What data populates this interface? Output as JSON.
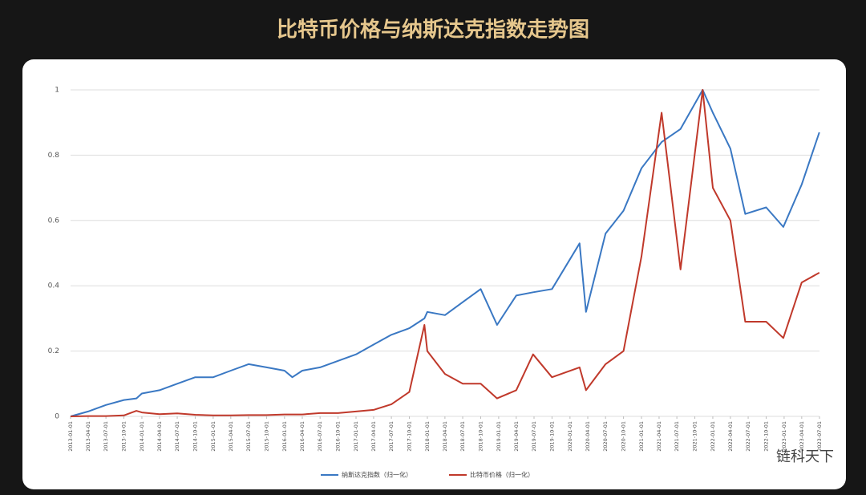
{
  "chart_data": {
    "type": "line",
    "title": "比特币价格与纳斯达克指数走势图",
    "watermark": "链科天下",
    "x": [
      "2013-01-01",
      "2013-04-01",
      "2013-07-01",
      "2013-10-01",
      "2013-12-04",
      "2014-01-01",
      "2014-04-01",
      "2014-07-01",
      "2014-10-01",
      "2015-01-01",
      "2015-04-01",
      "2015-07-01",
      "2015-10-01",
      "2016-01-01",
      "2016-02-10",
      "2016-04-01",
      "2016-07-01",
      "2016-10-01",
      "2017-01-01",
      "2017-04-01",
      "2017-07-01",
      "2017-10-01",
      "2017-12-17",
      "2018-01-01",
      "2018-04-01",
      "2018-07-01",
      "2018-10-01",
      "2018-12-24",
      "2019-04-01",
      "2019-06-26",
      "2019-10-01",
      "2020-02-19",
      "2020-03-23",
      "2020-07-01",
      "2020-10-01",
      "2021-01-01",
      "2021-04-14",
      "2021-07-20",
      "2021-11-10",
      "2022-01-01",
      "2022-04-01",
      "2022-06-16",
      "2022-10-01",
      "2022-12-28",
      "2023-04-01",
      "2023-06-30"
    ],
    "series": [
      {
        "name": "纳斯达克指数（归一化）",
        "color": "#3a78c3",
        "values": [
          0,
          0.015,
          0.035,
          0.05,
          0.055,
          0.07,
          0.08,
          0.1,
          0.12,
          0.12,
          0.14,
          0.16,
          0.15,
          0.14,
          0.12,
          0.14,
          0.15,
          0.17,
          0.19,
          0.22,
          0.25,
          0.27,
          0.3,
          0.32,
          0.31,
          0.35,
          0.39,
          0.28,
          0.37,
          0.38,
          0.39,
          0.53,
          0.32,
          0.56,
          0.63,
          0.76,
          0.84,
          0.88,
          1,
          0.93,
          0.82,
          0.62,
          0.64,
          0.58,
          0.71,
          0.87
        ]
      },
      {
        "name": "比特币价格（归一化）",
        "color": "#c0392b",
        "values": [
          0,
          0.001,
          0.001,
          0.003,
          0.017,
          0.012,
          0.007,
          0.009,
          0.005,
          0.003,
          0.003,
          0.004,
          0.004,
          0.006,
          0.006,
          0.006,
          0.01,
          0.01,
          0.015,
          0.02,
          0.037,
          0.075,
          0.28,
          0.2,
          0.13,
          0.1,
          0.1,
          0.055,
          0.08,
          0.19,
          0.12,
          0.15,
          0.08,
          0.16,
          0.2,
          0.49,
          0.93,
          0.45,
          1,
          0.7,
          0.6,
          0.29,
          0.29,
          0.24,
          0.41,
          0.44
        ]
      }
    ],
    "xlim": [
      "2013-01-01",
      "2023-07-01"
    ],
    "xticks": [
      "2013-01-01",
      "2013-04-01",
      "2013-07-01",
      "2013-10-01",
      "2014-01-01",
      "2014-04-01",
      "2014-07-01",
      "2014-10-01",
      "2015-01-01",
      "2015-04-01",
      "2015-07-01",
      "2015-10-01",
      "2016-01-01",
      "2016-04-01",
      "2016-07-01",
      "2016-10-01",
      "2017-01-01",
      "2017-04-01",
      "2017-07-01",
      "2017-10-01",
      "2018-01-01",
      "2018-04-01",
      "2018-07-01",
      "2018-10-01",
      "2019-01-01",
      "2019-04-01",
      "2019-07-01",
      "2019-10-01",
      "2020-01-01",
      "2020-04-01",
      "2020-07-01",
      "2020-10-01",
      "2021-01-01",
      "2021-04-01",
      "2021-07-01",
      "2021-10-01",
      "2022-01-01",
      "2022-04-01",
      "2022-07-01",
      "2022-10-01",
      "2023-01-01",
      "2023-04-01",
      "2023-07-01"
    ],
    "ylim": [
      0,
      1
    ],
    "yticks": [
      0,
      0.2,
      0.4,
      0.6,
      0.8,
      1
    ],
    "grid": true,
    "legend": "bottom"
  }
}
